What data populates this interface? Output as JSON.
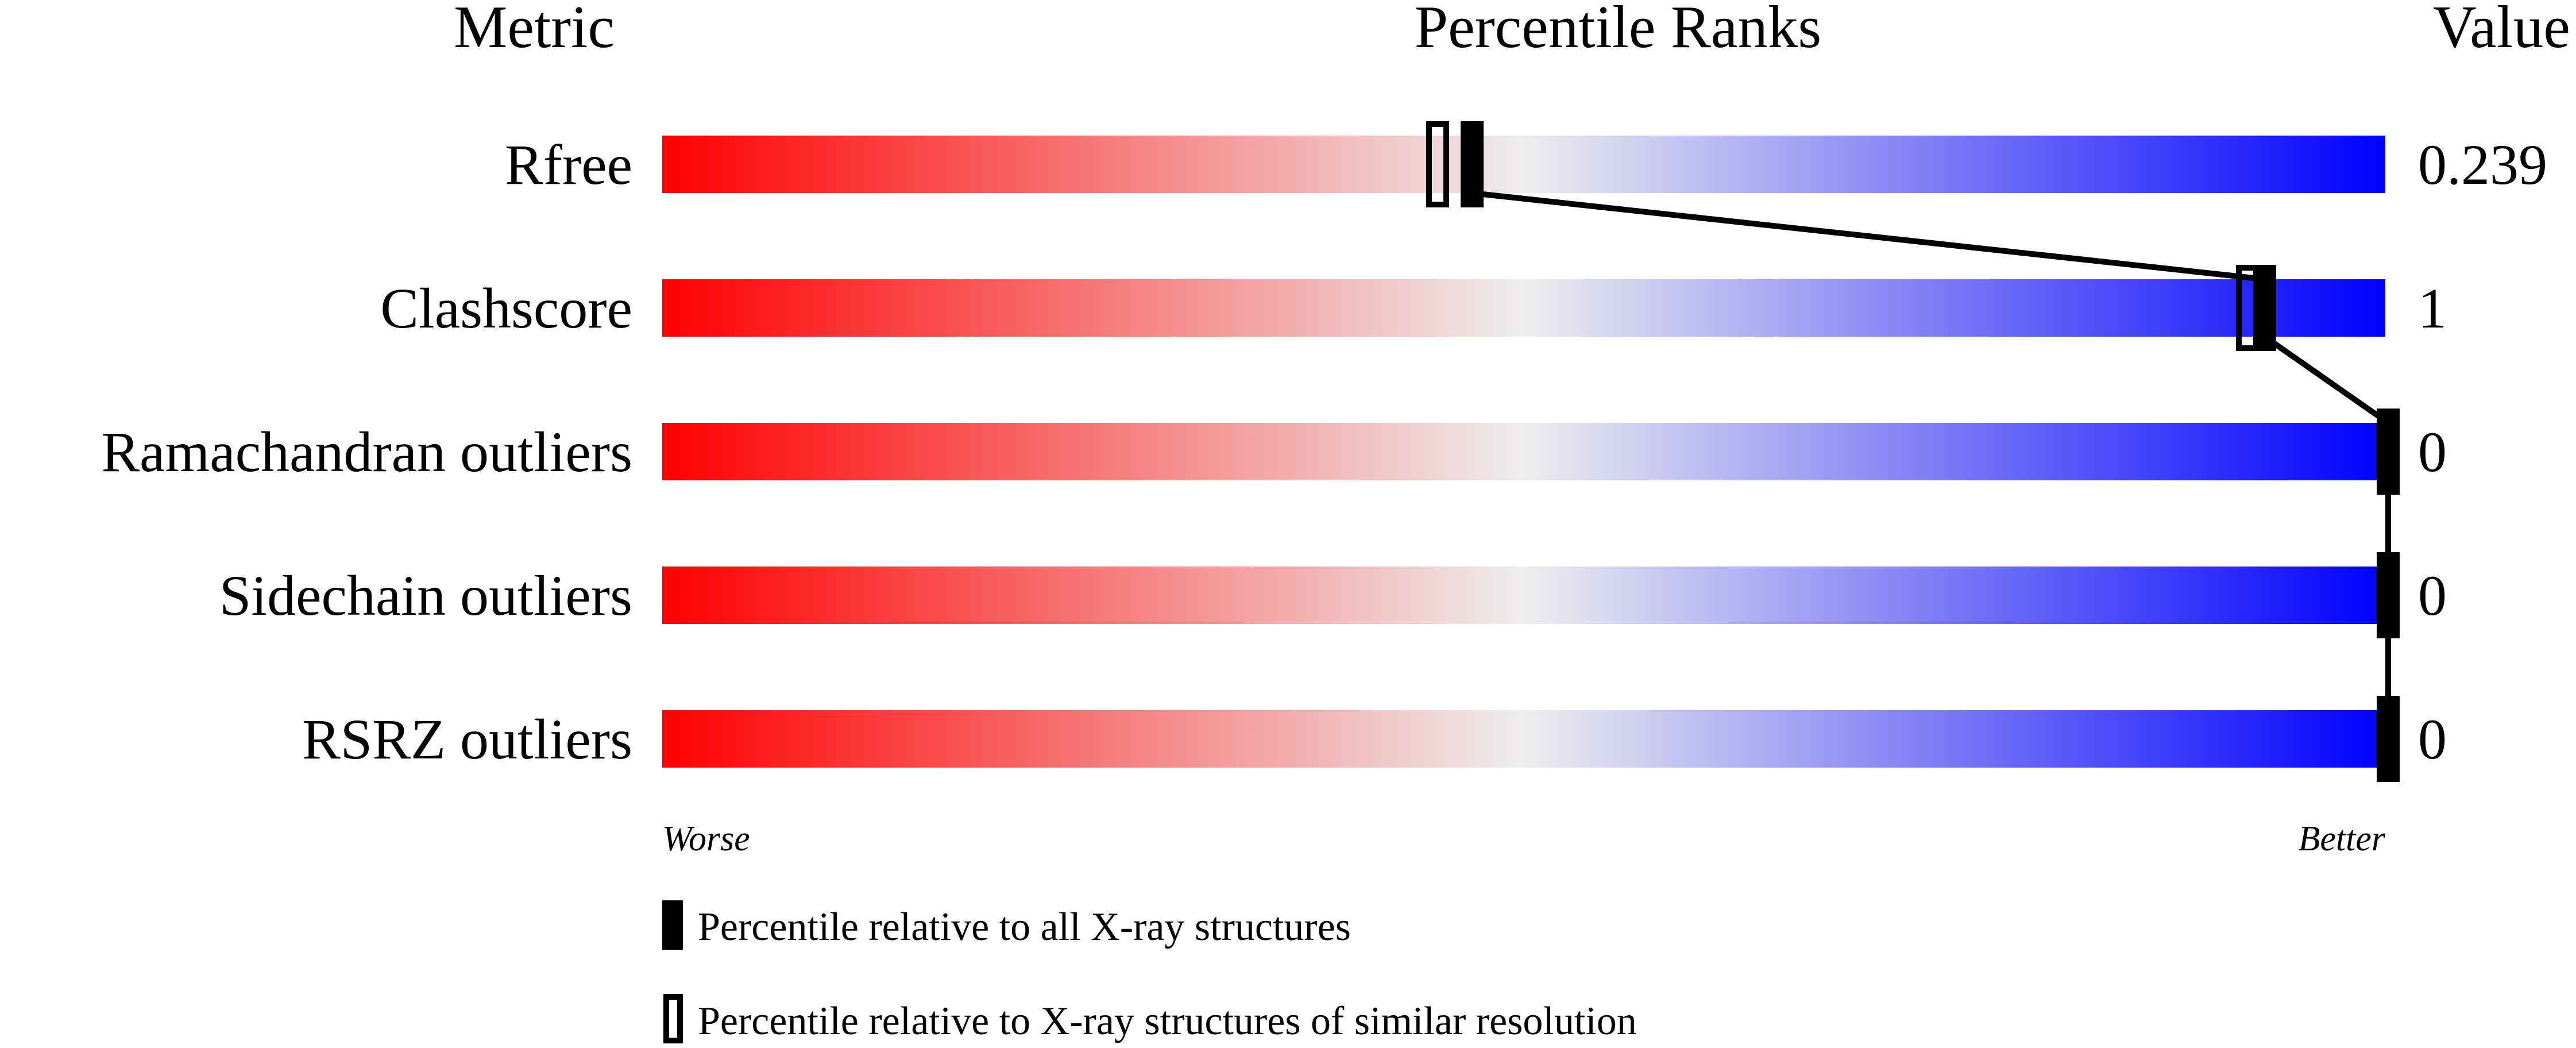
{
  "chart_data": {
    "type": "percentile-bar",
    "headers": {
      "metric": "Metric",
      "ranks": "Percentile Ranks",
      "value": "Value"
    },
    "axis": {
      "left_label": "Worse",
      "right_label": "Better",
      "range": [
        0,
        100
      ]
    },
    "colors": {
      "worse": "#ff0000",
      "middle": "#eeeeee",
      "better": "#0000ff",
      "marker": "#000000"
    },
    "rows": [
      {
        "metric": "Rfree",
        "value": "0.239",
        "percentile_all": 47,
        "percentile_similar": 45
      },
      {
        "metric": "Clashscore",
        "value": "1",
        "percentile_all": 93,
        "percentile_similar": 92
      },
      {
        "metric": "Ramachandran outliers",
        "value": "0",
        "percentile_all": 100,
        "percentile_similar": null
      },
      {
        "metric": "Sidechain outliers",
        "value": "0",
        "percentile_all": 100,
        "percentile_similar": null
      },
      {
        "metric": "RSRZ outliers",
        "value": "0",
        "percentile_all": 100,
        "percentile_similar": null
      }
    ],
    "legend": [
      {
        "marker": "filled",
        "label": "Percentile relative to all X-ray structures"
      },
      {
        "marker": "open",
        "label": "Percentile relative to X-ray structures of similar resolution"
      }
    ]
  }
}
